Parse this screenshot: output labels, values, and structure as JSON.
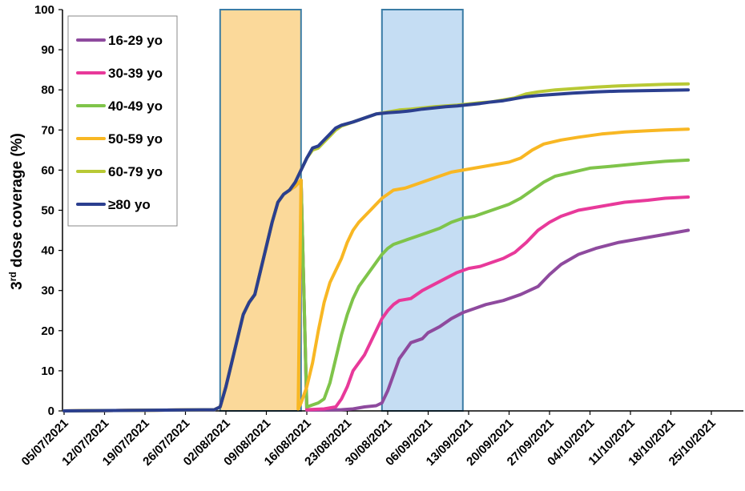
{
  "chart_data": {
    "type": "line",
    "ylabel_main": "3",
    "ylabel_sup": "rd",
    "ylabel_rest": " dose coverage (%)",
    "ylim": [
      0,
      100
    ],
    "yticks": [
      0,
      10,
      20,
      30,
      40,
      50,
      60,
      70,
      80,
      90,
      100
    ],
    "xticks": [
      "05/07/2021",
      "12/07/2021",
      "19/07/2021",
      "26/07/2021",
      "02/08/2021",
      "09/08/2021",
      "16/08/2021",
      "23/08/2021",
      "30/08/2021",
      "06/09/2021",
      "13/09/2021",
      "20/09/2021",
      "27/09/2021",
      "04/10/2021",
      "11/10/2021",
      "18/10/2021",
      "25/10/2021"
    ],
    "xlim_days": [
      0,
      120
    ],
    "grid": false,
    "legend_placement": "top-left",
    "shaded_regions": [
      {
        "start_day": 27,
        "end_day": 41,
        "color": "#fbd99a",
        "border": "#3a7ca5"
      },
      {
        "start_day": 55,
        "end_day": 69,
        "color": "#c5ddf3",
        "border": "#3a7ca5"
      }
    ],
    "series": [
      {
        "name": "16-29 yo",
        "color": "#8e4a9e",
        "points": [
          [
            0,
            0
          ],
          [
            26,
            0.3
          ],
          [
            27,
            1
          ],
          [
            28,
            6
          ],
          [
            29,
            12
          ],
          [
            30,
            18
          ],
          [
            31,
            24
          ],
          [
            32,
            27
          ],
          [
            33,
            29
          ],
          [
            34,
            35
          ],
          [
            35,
            41
          ],
          [
            36,
            47
          ],
          [
            37,
            52
          ],
          [
            38,
            54
          ],
          [
            39,
            55
          ],
          [
            40,
            56
          ],
          [
            41,
            57.5
          ],
          [
            42,
            0.2
          ],
          [
            45,
            0.2
          ],
          [
            48,
            0.3
          ],
          [
            50,
            0.5
          ],
          [
            52,
            1
          ],
          [
            54,
            1.3
          ],
          [
            55,
            2
          ],
          [
            56,
            5
          ],
          [
            57,
            9
          ],
          [
            58,
            13
          ],
          [
            59,
            15
          ],
          [
            60,
            17
          ],
          [
            62,
            18
          ],
          [
            63,
            19.5
          ],
          [
            65,
            21
          ],
          [
            67,
            23
          ],
          [
            69,
            24.5
          ],
          [
            71,
            25.5
          ],
          [
            73,
            26.5
          ],
          [
            76,
            27.5
          ],
          [
            79,
            29
          ],
          [
            82,
            31
          ],
          [
            84,
            34
          ],
          [
            86,
            36.5
          ],
          [
            89,
            39
          ],
          [
            92,
            40.5
          ],
          [
            96,
            42
          ],
          [
            100,
            43
          ],
          [
            104,
            44
          ],
          [
            108,
            45
          ]
        ]
      },
      {
        "name": "30-39 yo",
        "color": "#e8399a",
        "points": [
          [
            0,
            0
          ],
          [
            26,
            0.3
          ],
          [
            27,
            1
          ],
          [
            28,
            6
          ],
          [
            29,
            12
          ],
          [
            30,
            18
          ],
          [
            31,
            24
          ],
          [
            32,
            27
          ],
          [
            33,
            29
          ],
          [
            34,
            35
          ],
          [
            35,
            41
          ],
          [
            36,
            47
          ],
          [
            37,
            52
          ],
          [
            38,
            54
          ],
          [
            39,
            55
          ],
          [
            40,
            56
          ],
          [
            41,
            57.5
          ],
          [
            42,
            0.3
          ],
          [
            45,
            0.5
          ],
          [
            47,
            1
          ],
          [
            48,
            3
          ],
          [
            49,
            6
          ],
          [
            50,
            10
          ],
          [
            51,
            12
          ],
          [
            52,
            14
          ],
          [
            53,
            17
          ],
          [
            54,
            20
          ],
          [
            55,
            23
          ],
          [
            56,
            25
          ],
          [
            57,
            26.5
          ],
          [
            58,
            27.5
          ],
          [
            60,
            28
          ],
          [
            62,
            30
          ],
          [
            64,
            31.5
          ],
          [
            66,
            33
          ],
          [
            68,
            34.5
          ],
          [
            70,
            35.5
          ],
          [
            72,
            36
          ],
          [
            74,
            37
          ],
          [
            76,
            38
          ],
          [
            78,
            39.5
          ],
          [
            80,
            42
          ],
          [
            82,
            45
          ],
          [
            84,
            47
          ],
          [
            86,
            48.5
          ],
          [
            89,
            50
          ],
          [
            93,
            51
          ],
          [
            97,
            52
          ],
          [
            101,
            52.5
          ],
          [
            104,
            53
          ],
          [
            108,
            53.3
          ]
        ]
      },
      {
        "name": "40-49 yo",
        "color": "#7fc44a",
        "points": [
          [
            0,
            0
          ],
          [
            26,
            0.3
          ],
          [
            27,
            1
          ],
          [
            28,
            6
          ],
          [
            29,
            12
          ],
          [
            30,
            18
          ],
          [
            31,
            24
          ],
          [
            32,
            27
          ],
          [
            33,
            29
          ],
          [
            34,
            35
          ],
          [
            35,
            41
          ],
          [
            36,
            47
          ],
          [
            37,
            52
          ],
          [
            38,
            54
          ],
          [
            39,
            55
          ],
          [
            40,
            56
          ],
          [
            41,
            57.5
          ],
          [
            42,
            1
          ],
          [
            43,
            1.5
          ],
          [
            44,
            2
          ],
          [
            45,
            3
          ],
          [
            46,
            7
          ],
          [
            47,
            13
          ],
          [
            48,
            19
          ],
          [
            49,
            24
          ],
          [
            50,
            28
          ],
          [
            51,
            31
          ],
          [
            52,
            33
          ],
          [
            53,
            35
          ],
          [
            54,
            37
          ],
          [
            55,
            39
          ],
          [
            56,
            40.5
          ],
          [
            57,
            41.5
          ],
          [
            59,
            42.5
          ],
          [
            61,
            43.5
          ],
          [
            63,
            44.5
          ],
          [
            65,
            45.5
          ],
          [
            67,
            47
          ],
          [
            69,
            48
          ],
          [
            71,
            48.5
          ],
          [
            73,
            49.5
          ],
          [
            75,
            50.5
          ],
          [
            77,
            51.5
          ],
          [
            79,
            53
          ],
          [
            81,
            55
          ],
          [
            83,
            57
          ],
          [
            85,
            58.5
          ],
          [
            88,
            59.5
          ],
          [
            91,
            60.5
          ],
          [
            95,
            61
          ],
          [
            100,
            61.7
          ],
          [
            104,
            62.2
          ],
          [
            108,
            62.5
          ]
        ]
      },
      {
        "name": "50-59 yo",
        "color": "#f8b723",
        "points": [
          [
            0,
            0
          ],
          [
            26,
            0.3
          ],
          [
            27,
            1
          ],
          [
            28,
            6
          ],
          [
            29,
            12
          ],
          [
            30,
            18
          ],
          [
            31,
            24
          ],
          [
            32,
            27
          ],
          [
            33,
            29
          ],
          [
            34,
            35
          ],
          [
            35,
            41
          ],
          [
            36,
            47
          ],
          [
            37,
            52
          ],
          [
            38,
            54
          ],
          [
            39,
            55
          ],
          [
            40,
            56
          ],
          [
            41,
            57.5
          ],
          [
            40.5,
            0.5
          ],
          [
            41,
            2
          ],
          [
            42,
            6
          ],
          [
            43,
            12
          ],
          [
            44,
            20
          ],
          [
            45,
            27
          ],
          [
            46,
            32
          ],
          [
            47,
            35
          ],
          [
            48,
            38
          ],
          [
            49,
            42
          ],
          [
            50,
            45
          ],
          [
            51,
            47
          ],
          [
            52,
            48.5
          ],
          [
            53,
            50
          ],
          [
            54,
            51.5
          ],
          [
            55,
            53
          ],
          [
            56,
            54
          ],
          [
            57,
            55
          ],
          [
            59,
            55.5
          ],
          [
            61,
            56.5
          ],
          [
            63,
            57.5
          ],
          [
            65,
            58.5
          ],
          [
            67,
            59.5
          ],
          [
            69,
            60
          ],
          [
            71,
            60.5
          ],
          [
            73,
            61
          ],
          [
            75,
            61.5
          ],
          [
            77,
            62
          ],
          [
            79,
            63
          ],
          [
            81,
            65
          ],
          [
            83,
            66.5
          ],
          [
            86,
            67.5
          ],
          [
            89,
            68.2
          ],
          [
            93,
            69
          ],
          [
            97,
            69.5
          ],
          [
            101,
            69.8
          ],
          [
            104,
            70
          ],
          [
            108,
            70.2
          ]
        ]
      },
      {
        "name": "60-79 yo",
        "color": "#b8c935",
        "points": [
          [
            0,
            0
          ],
          [
            26,
            0.3
          ],
          [
            27,
            1
          ],
          [
            28,
            6
          ],
          [
            29,
            12
          ],
          [
            30,
            18
          ],
          [
            31,
            24
          ],
          [
            32,
            27
          ],
          [
            33,
            29
          ],
          [
            34,
            35
          ],
          [
            35,
            41
          ],
          [
            36,
            47
          ],
          [
            37,
            52
          ],
          [
            38,
            54
          ],
          [
            39,
            55
          ],
          [
            40,
            57
          ],
          [
            41,
            60
          ],
          [
            42,
            63
          ],
          [
            43,
            65
          ],
          [
            44,
            65.5
          ],
          [
            45,
            67
          ],
          [
            46,
            68.5
          ],
          [
            47,
            70
          ],
          [
            48,
            71
          ],
          [
            49,
            71.5
          ],
          [
            50,
            72
          ],
          [
            51,
            72.5
          ],
          [
            52,
            73
          ],
          [
            53,
            73.5
          ],
          [
            54,
            74
          ],
          [
            56,
            74.5
          ],
          [
            58,
            75
          ],
          [
            60,
            75.2
          ],
          [
            62,
            75.5
          ],
          [
            64,
            75.8
          ],
          [
            66,
            76
          ],
          [
            68,
            76.2
          ],
          [
            70,
            76.5
          ],
          [
            72,
            76.8
          ],
          [
            74,
            77
          ],
          [
            76,
            77.5
          ],
          [
            78,
            78
          ],
          [
            80,
            79
          ],
          [
            82,
            79.5
          ],
          [
            85,
            80
          ],
          [
            88,
            80.3
          ],
          [
            92,
            80.7
          ],
          [
            96,
            81
          ],
          [
            100,
            81.2
          ],
          [
            104,
            81.4
          ],
          [
            108,
            81.5
          ]
        ]
      },
      {
        "name": "≥80 yo",
        "color": "#2b3f8f",
        "points": [
          [
            0,
            0
          ],
          [
            26,
            0.3
          ],
          [
            27,
            1
          ],
          [
            28,
            6
          ],
          [
            29,
            12
          ],
          [
            30,
            18
          ],
          [
            31,
            24
          ],
          [
            32,
            27
          ],
          [
            33,
            29
          ],
          [
            34,
            35
          ],
          [
            35,
            41
          ],
          [
            36,
            47
          ],
          [
            37,
            52
          ],
          [
            38,
            54
          ],
          [
            39,
            55
          ],
          [
            40,
            57
          ],
          [
            41,
            60
          ],
          [
            42,
            63
          ],
          [
            43,
            65.5
          ],
          [
            44,
            66
          ],
          [
            45,
            67.5
          ],
          [
            46,
            69
          ],
          [
            47,
            70.5
          ],
          [
            48,
            71.2
          ],
          [
            49,
            71.6
          ],
          [
            50,
            72
          ],
          [
            51,
            72.5
          ],
          [
            52,
            73
          ],
          [
            53,
            73.5
          ],
          [
            54,
            74
          ],
          [
            56,
            74.3
          ],
          [
            58,
            74.5
          ],
          [
            60,
            74.8
          ],
          [
            62,
            75.2
          ],
          [
            64,
            75.5
          ],
          [
            66,
            75.8
          ],
          [
            68,
            76
          ],
          [
            70,
            76.3
          ],
          [
            72,
            76.6
          ],
          [
            74,
            77
          ],
          [
            76,
            77.3
          ],
          [
            78,
            77.8
          ],
          [
            80,
            78.3
          ],
          [
            82,
            78.6
          ],
          [
            85,
            78.9
          ],
          [
            88,
            79.2
          ],
          [
            92,
            79.5
          ],
          [
            96,
            79.7
          ],
          [
            100,
            79.8
          ],
          [
            104,
            79.9
          ],
          [
            108,
            80
          ]
        ]
      }
    ]
  }
}
